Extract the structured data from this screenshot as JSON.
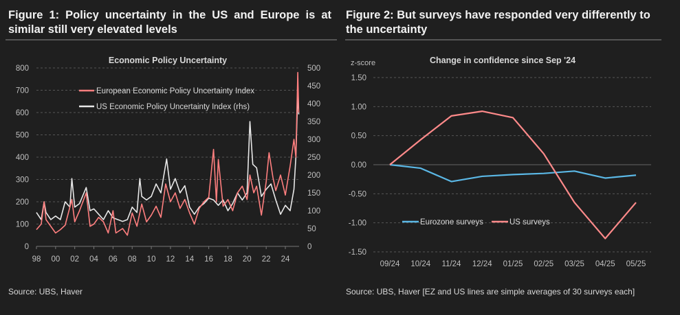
{
  "fig1": {
    "title": "Figure 1: Policy uncertainty in the US and Europe is at similar still very elevated levels",
    "source": "Source: UBS, Haver"
  },
  "fig2": {
    "title": "Figure 2: But surveys have responded very differently to the uncertainty",
    "source": "Source: UBS, Haver [EZ and US lines are simple averages of 30 surveys each]"
  },
  "chart_data": [
    {
      "type": "line",
      "title": "Economic Policy Uncertainty",
      "xlabel": "",
      "ylabel": "",
      "ylim": [
        0,
        800
      ],
      "y2lim": [
        0,
        500
      ],
      "yticks": [
        "0",
        "100",
        "200",
        "300",
        "400",
        "500",
        "600",
        "700",
        "800"
      ],
      "y2ticks": [
        "0",
        "50",
        "100",
        "150",
        "200",
        "250",
        "300",
        "350",
        "400",
        "450",
        "500"
      ],
      "xticks": [
        "98",
        "00",
        "02",
        "04",
        "06",
        "08",
        "10",
        "12",
        "14",
        "16",
        "18",
        "20",
        "22",
        "24"
      ],
      "legend_position": "top-center",
      "grid": true,
      "series": [
        {
          "name": "European Economic Policy Uncertainty Index",
          "axis": "left",
          "color": "#ff7f7f",
          "x": [
            1998,
            1998.5,
            1998.8,
            1999,
            1999.5,
            2000,
            2000.5,
            2001,
            2001.7,
            2002,
            2002.5,
            2003.2,
            2003.6,
            2004,
            2004.5,
            2005,
            2005.5,
            2006,
            2006.3,
            2007,
            2007.5,
            2008,
            2008.5,
            2009,
            2009.5,
            2010,
            2010.5,
            2011,
            2011.5,
            2012,
            2012.5,
            2013,
            2013.5,
            2014,
            2014.5,
            2015,
            2015.5,
            2016,
            2016.5,
            2016.8,
            2017,
            2017.5,
            2018,
            2018.5,
            2019,
            2019.5,
            2020,
            2020.3,
            2020.7,
            2021,
            2021.5,
            2022,
            2022.3,
            2022.7,
            2023,
            2023.5,
            2024,
            2024.5,
            2024.9,
            2025.1,
            2025.3,
            2025.4
          ],
          "values": [
            75,
            100,
            200,
            120,
            90,
            60,
            75,
            95,
            210,
            110,
            160,
            240,
            90,
            100,
            130,
            110,
            60,
            160,
            60,
            80,
            50,
            150,
            90,
            190,
            110,
            140,
            180,
            130,
            280,
            200,
            240,
            170,
            210,
            150,
            100,
            170,
            200,
            220,
            435,
            200,
            390,
            180,
            210,
            160,
            240,
            270,
            210,
            320,
            240,
            270,
            140,
            290,
            420,
            310,
            250,
            320,
            230,
            360,
            480,
            400,
            780,
            600
          ]
        },
        {
          "name": "US Economic Policy Uncertainty Index (rhs)",
          "axis": "right",
          "color": "#e8e8e8",
          "x": [
            1998,
            1998.5,
            1998.8,
            1999,
            1999.5,
            2000,
            2000.5,
            2001,
            2001.5,
            2001.7,
            2002,
            2002.5,
            2003.2,
            2003.6,
            2004,
            2004.5,
            2005,
            2005.5,
            2006,
            2006.5,
            2007,
            2007.5,
            2008,
            2008.5,
            2008.8,
            2009,
            2009.5,
            2010,
            2010.5,
            2011,
            2011.6,
            2012,
            2012.5,
            2013,
            2013.5,
            2014,
            2014.5,
            2015,
            2015.5,
            2016,
            2016.5,
            2017,
            2017.5,
            2018,
            2018.5,
            2019,
            2019.5,
            2020,
            2020.3,
            2020.6,
            2021,
            2021.5,
            2022,
            2022.5,
            2023,
            2023.5,
            2024,
            2024.5,
            2024.9,
            2025.1,
            2025.3,
            2025.4
          ],
          "values": [
            95,
            75,
            125,
            95,
            75,
            85,
            75,
            125,
            110,
            190,
            110,
            120,
            165,
            100,
            105,
            90,
            75,
            100,
            80,
            75,
            70,
            75,
            110,
            95,
            190,
            140,
            130,
            140,
            175,
            150,
            245,
            160,
            190,
            150,
            170,
            110,
            90,
            110,
            120,
            135,
            130,
            115,
            130,
            100,
            120,
            150,
            130,
            150,
            350,
            230,
            220,
            140,
            160,
            175,
            130,
            90,
            115,
            100,
            160,
            250,
            430,
            370
          ]
        }
      ]
    },
    {
      "type": "line",
      "title": "Change in confidence since Sep '24",
      "ylabel": "z-score",
      "ylim": [
        -1.5,
        1.5
      ],
      "yticks": [
        "1.50",
        "1.00",
        "0.50",
        "0.00",
        "-0.50",
        "-1.00",
        "-1.50"
      ],
      "categories": [
        "09/24",
        "10/24",
        "11/24",
        "12/24",
        "01/25",
        "02/25",
        "03/25",
        "04/25",
        "05/25"
      ],
      "legend_position": "bottom-left",
      "grid": true,
      "series": [
        {
          "name": "Eurozone surveys",
          "color": "#5bb8e6",
          "values": [
            0,
            -0.06,
            -0.29,
            -0.2,
            -0.17,
            -0.15,
            -0.11,
            -0.23,
            -0.18
          ]
        },
        {
          "name": "US surveys",
          "color": "#ff8a8a",
          "values": [
            0,
            0.43,
            0.84,
            0.92,
            0.81,
            0.19,
            -0.65,
            -1.27,
            -0.65
          ]
        }
      ]
    }
  ]
}
